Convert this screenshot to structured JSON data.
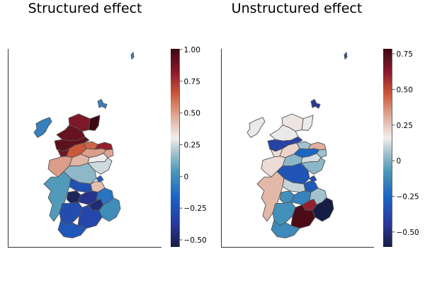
{
  "chart_data": [
    {
      "type": "heatmap",
      "subtype": "choropleth",
      "title": "Structured effect",
      "xlabel": "",
      "ylabel": "",
      "grid": false,
      "colorbar": {
        "range": [
          -0.55,
          1.0
        ],
        "ticks": [
          -0.5,
          -0.25,
          0,
          0.25,
          0.5,
          0.75,
          1.0
        ],
        "tick_labels": [
          "−0.50",
          "−0.25",
          "0",
          "0.25",
          "0.50",
          "0.75",
          "1.00"
        ],
        "colormap": "diverging blue-white-red (balance)"
      },
      "regions": [
        {
          "id": "shetland",
          "value": -0.05
        },
        {
          "id": "orkney",
          "value": -0.05
        },
        {
          "id": "western-isles",
          "value": -0.05
        },
        {
          "id": "caithness",
          "value": 1.0
        },
        {
          "id": "sutherland",
          "value": 0.85
        },
        {
          "id": "ross-north",
          "value": 0.9
        },
        {
          "id": "wester-ross",
          "value": 0.92
        },
        {
          "id": "skye-lochalsh",
          "value": 0.88
        },
        {
          "id": "nairn-inverness",
          "value": 0.65
        },
        {
          "id": "moray",
          "value": 0.62
        },
        {
          "id": "banff-buchan",
          "value": 0.8
        },
        {
          "id": "aberdeenshire-central",
          "value": 0.5
        },
        {
          "id": "aberdeen",
          "value": 0.48
        },
        {
          "id": "lochaber",
          "value": 0.5
        },
        {
          "id": "badenoch",
          "value": 0.45
        },
        {
          "id": "kincardine",
          "value": 0.3
        },
        {
          "id": "angus",
          "value": 0.25
        },
        {
          "id": "perth-kinross",
          "value": 0.15
        },
        {
          "id": "dundee",
          "value": -0.2
        },
        {
          "id": "fife",
          "value": 0.42
        },
        {
          "id": "argyll",
          "value": 0.05
        },
        {
          "id": "stirling",
          "value": -0.25
        },
        {
          "id": "glasgow",
          "value": -0.5
        },
        {
          "id": "lanark",
          "value": -0.4
        },
        {
          "id": "edinburgh",
          "value": -0.45
        },
        {
          "id": "lothian-east",
          "value": -0.1
        },
        {
          "id": "borders",
          "value": 0.0
        },
        {
          "id": "ayrshire",
          "value": -0.28
        },
        {
          "id": "dumfries",
          "value": -0.3
        },
        {
          "id": "galloway",
          "value": -0.22
        }
      ]
    },
    {
      "type": "heatmap",
      "subtype": "choropleth",
      "title": "Unstructured effect",
      "xlabel": "",
      "ylabel": "",
      "grid": false,
      "colorbar": {
        "range": [
          -0.6,
          0.78
        ],
        "ticks": [
          -0.5,
          -0.25,
          0,
          0.25,
          0.5,
          0.75
        ],
        "tick_labels": [
          "−0.50",
          "−0.25",
          "0",
          "0.25",
          "0.50",
          "0.75"
        ],
        "colormap": "diverging blue-white-red (balance)"
      },
      "regions": [
        {
          "id": "shetland",
          "value": -0.3
        },
        {
          "id": "orkney",
          "value": -0.45
        },
        {
          "id": "western-isles",
          "value": 0.15
        },
        {
          "id": "caithness",
          "value": 0.15
        },
        {
          "id": "sutherland",
          "value": 0.18
        },
        {
          "id": "ross-north",
          "value": 0.15
        },
        {
          "id": "wester-ross",
          "value": -0.4
        },
        {
          "id": "skye-lochalsh",
          "value": 0.2
        },
        {
          "id": "nairn-inverness",
          "value": 0.22
        },
        {
          "id": "moray",
          "value": 0.05
        },
        {
          "id": "banff-buchan",
          "value": 0.3
        },
        {
          "id": "aberdeenshire-central",
          "value": -0.25
        },
        {
          "id": "aberdeen",
          "value": 0.05
        },
        {
          "id": "lochaber",
          "value": 0.2
        },
        {
          "id": "badenoch",
          "value": 0.02
        },
        {
          "id": "kincardine",
          "value": 0.12
        },
        {
          "id": "angus",
          "value": 0.02
        },
        {
          "id": "perth-kinross",
          "value": -0.32
        },
        {
          "id": "dundee",
          "value": -0.35
        },
        {
          "id": "fife",
          "value": -0.3
        },
        {
          "id": "argyll",
          "value": 0.28
        },
        {
          "id": "stirling",
          "value": 0.1
        },
        {
          "id": "glasgow",
          "value": -0.1
        },
        {
          "id": "lanark",
          "value": -0.15
        },
        {
          "id": "edinburgh",
          "value": 0.6
        },
        {
          "id": "lothian-east",
          "value": 0.05
        },
        {
          "id": "borders",
          "value": -0.6
        },
        {
          "id": "ayrshire",
          "value": -0.1
        },
        {
          "id": "dumfries",
          "value": 0.75
        },
        {
          "id": "galloway",
          "value": -0.12
        }
      ]
    }
  ]
}
